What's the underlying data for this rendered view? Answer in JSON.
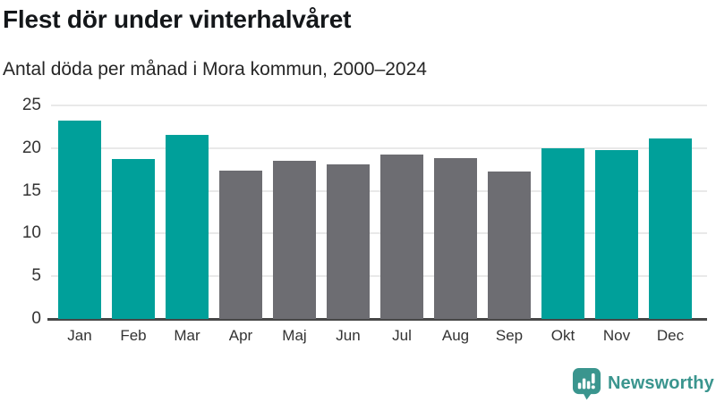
{
  "header": {
    "title": "Flest dör under vinterhalvåret",
    "subtitle": "Antal döda per månad i Mora kommun, 2000–2024"
  },
  "chart_data": {
    "type": "bar",
    "title": "Flest dör under vinterhalvåret",
    "subtitle": "Antal döda per månad i Mora kommun, 2000–2024",
    "categories": [
      "Jan",
      "Feb",
      "Mar",
      "Apr",
      "Maj",
      "Jun",
      "Jul",
      "Aug",
      "Sep",
      "Okt",
      "Nov",
      "Dec"
    ],
    "values": [
      23.2,
      18.7,
      21.5,
      17.4,
      18.5,
      18.1,
      19.3,
      18.8,
      17.3,
      20.0,
      19.8,
      21.1
    ],
    "highlighted": [
      true,
      true,
      true,
      false,
      false,
      false,
      false,
      false,
      false,
      true,
      true,
      true
    ],
    "xlabel": "",
    "ylabel": "",
    "ylim": [
      0,
      25
    ],
    "yticks": [
      0,
      5,
      10,
      15,
      20,
      25
    ],
    "grid": true,
    "legend_position": "none",
    "colors": {
      "highlight": "#00A09A",
      "default": "#6D6D72",
      "gridline": "#E9E9E9",
      "baseline": "#474747",
      "axis_text": "#333333"
    }
  },
  "footer": {
    "brand": "Newsworthy",
    "brand_color": "#3A958E",
    "logo_icon": "bar-chart-speech-bubble"
  }
}
